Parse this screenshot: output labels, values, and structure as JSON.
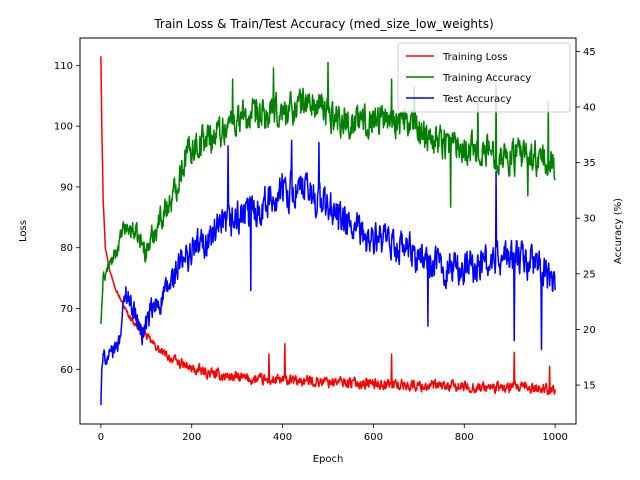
{
  "chart_data": {
    "type": "line",
    "title": "Train Loss & Train/Test Accuracy (med_size_low_weights)",
    "xlabel": "Epoch",
    "ylabel_left": "Loss",
    "ylabel_right": "Accuracy (%)",
    "xlim": [
      -46,
      1046
    ],
    "ylim_left": [
      51.0,
      114.5
    ],
    "ylim_right": [
      11.5,
      46.2
    ],
    "x_ticks": [
      0,
      200,
      400,
      600,
      800,
      1000
    ],
    "y_ticks_left": [
      60,
      70,
      80,
      90,
      100,
      110
    ],
    "y_ticks_right": [
      15,
      20,
      25,
      30,
      35,
      40,
      45
    ],
    "legend_position": "top-right",
    "grid": false,
    "x_range": [
      0,
      1000
    ],
    "series": [
      {
        "name": "Training Loss",
        "axis": "left",
        "color": "#ff0000",
        "keypoints": [
          [
            0,
            111.5
          ],
          [
            2,
            100
          ],
          [
            5,
            88
          ],
          [
            10,
            80
          ],
          [
            20,
            76
          ],
          [
            40,
            72
          ],
          [
            60,
            69
          ],
          [
            80,
            67
          ],
          [
            100,
            65.5
          ],
          [
            130,
            63
          ],
          [
            160,
            61.5
          ],
          [
            200,
            60
          ],
          [
            260,
            59
          ],
          [
            350,
            58.2
          ],
          [
            500,
            58
          ],
          [
            700,
            57.3
          ],
          [
            850,
            57
          ],
          [
            1000,
            56.8
          ]
        ],
        "noise": [
          0.3,
          1.4
        ],
        "spikes": [
          [
            370,
            62.5
          ],
          [
            405,
            64.2
          ],
          [
            640,
            62.5
          ],
          [
            910,
            62.8
          ],
          [
            988,
            60.5
          ]
        ]
      },
      {
        "name": "Training Accuracy",
        "axis": "right",
        "color": "#008000",
        "keypoints": [
          [
            0,
            20.5
          ],
          [
            5,
            24.5
          ],
          [
            15,
            25.5
          ],
          [
            30,
            26.5
          ],
          [
            50,
            29
          ],
          [
            70,
            29
          ],
          [
            100,
            27
          ],
          [
            130,
            30
          ],
          [
            160,
            32
          ],
          [
            180,
            35
          ],
          [
            200,
            36.5
          ],
          [
            250,
            37.5
          ],
          [
            300,
            39
          ],
          [
            350,
            39
          ],
          [
            400,
            39.5
          ],
          [
            450,
            40.5
          ],
          [
            500,
            39.5
          ],
          [
            550,
            38.5
          ],
          [
            600,
            39
          ],
          [
            650,
            39
          ],
          [
            700,
            38
          ],
          [
            750,
            37
          ],
          [
            800,
            36.5
          ],
          [
            850,
            36
          ],
          [
            900,
            35.5
          ],
          [
            950,
            35.5
          ],
          [
            1000,
            34.5
          ]
        ],
        "noise": [
          0.8,
          2.3
        ],
        "spikes": [
          [
            290,
            42.5
          ],
          [
            380,
            43.5
          ],
          [
            500,
            44.0
          ],
          [
            640,
            42.5
          ],
          [
            690,
            41.8
          ],
          [
            830,
            41.0
          ],
          [
            870,
            42.0
          ],
          [
            985,
            40.5
          ],
          [
            770,
            31.0
          ],
          [
            940,
            32.0
          ]
        ]
      },
      {
        "name": "Test Accuracy",
        "axis": "right",
        "color": "#0000ff",
        "keypoints": [
          [
            0,
            13.2
          ],
          [
            2,
            16.5
          ],
          [
            5,
            17.5
          ],
          [
            20,
            17.5
          ],
          [
            40,
            19
          ],
          [
            55,
            23.5
          ],
          [
            70,
            22
          ],
          [
            90,
            19.5
          ],
          [
            110,
            21.5
          ],
          [
            140,
            23
          ],
          [
            170,
            25.5
          ],
          [
            200,
            27
          ],
          [
            250,
            28.5
          ],
          [
            300,
            30
          ],
          [
            350,
            31
          ],
          [
            400,
            32.5
          ],
          [
            450,
            32.5
          ],
          [
            500,
            31
          ],
          [
            550,
            29
          ],
          [
            600,
            28
          ],
          [
            650,
            27.5
          ],
          [
            700,
            26.5
          ],
          [
            750,
            25.5
          ],
          [
            800,
            25.5
          ],
          [
            850,
            26
          ],
          [
            900,
            26.5
          ],
          [
            950,
            26
          ],
          [
            1000,
            24
          ]
        ],
        "noise": [
          1.0,
          2.4
        ],
        "spikes": [
          [
            280,
            36.5
          ],
          [
            420,
            37.0
          ],
          [
            480,
            36.8
          ],
          [
            870,
            34.2
          ],
          [
            970,
            18.2
          ],
          [
            720,
            20.3
          ],
          [
            910,
            19.0
          ],
          [
            330,
            23.5
          ]
        ]
      }
    ]
  }
}
